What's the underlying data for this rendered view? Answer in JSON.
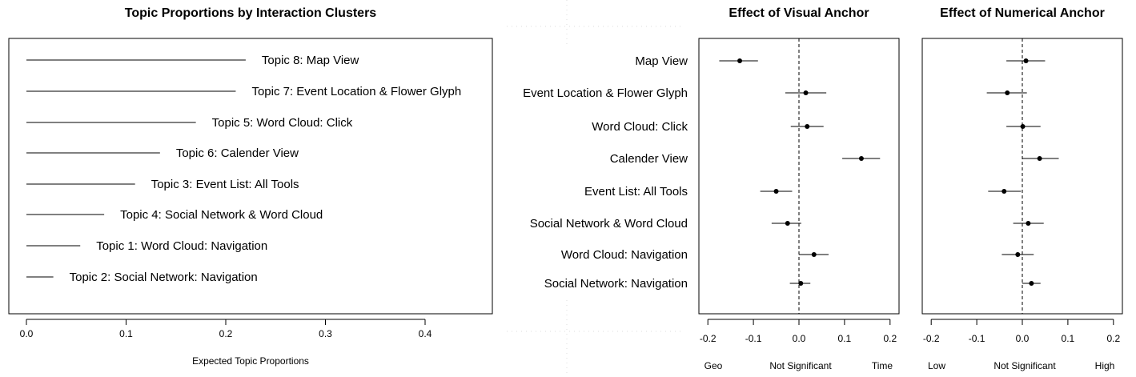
{
  "chart_data": [
    {
      "type": "bar",
      "orientation": "horizontal",
      "title": "Topic Proportions by Interaction Clusters",
      "xlabel": "Expected Topic Proportions",
      "ylabel": "",
      "xlim": [
        0,
        0.47
      ],
      "xticks": [
        "0.0",
        "0.1",
        "0.2",
        "0.3",
        "0.4"
      ],
      "xtick_values": [
        0,
        0.1,
        0.2,
        0.3,
        0.4
      ],
      "grid": false,
      "categories": [
        "Topic 8: Map View",
        "Topic 7: Event Location & Flower Glyph",
        "Topic 5: Word Cloud: Click",
        "Topic 6: Calender View",
        "Topic 3: Event List: All Tools",
        "Topic 4: Social Network & Word Cloud",
        "Topic 1: Word Cloud: Navigation",
        "Topic 2: Social Network: Navigation"
      ],
      "values": [
        0.22,
        0.21,
        0.17,
        0.134,
        0.109,
        0.078,
        0.054,
        0.027
      ]
    },
    {
      "type": "scatter",
      "subtype": "coefficient-plot",
      "title": "Effect of Visual Anchor",
      "xlim": [
        -0.22,
        0.22
      ],
      "xticks": [
        "-0.2",
        "-0.1",
        "0.0",
        "0.1",
        "0.2"
      ],
      "xtick_values": [
        -0.2,
        -0.1,
        0,
        0.1,
        0.2
      ],
      "xlabels_bottom": [
        "Geo",
        "Not Significant",
        "Time"
      ],
      "reference_line": 0,
      "grid": false,
      "categories": [
        "Map View",
        "Event Location & Flower Glyph",
        "Word Cloud: Click",
        "Calender View",
        "Event List: All Tools",
        "Social Network & Word Cloud",
        "Word Cloud: Navigation",
        "Social Network: Navigation"
      ],
      "estimates": [
        -0.13,
        0.015,
        0.018,
        0.137,
        -0.05,
        -0.025,
        0.033,
        0.004
      ],
      "ci_low": [
        -0.175,
        -0.03,
        -0.018,
        0.095,
        -0.085,
        -0.06,
        0.0,
        -0.02
      ],
      "ci_high": [
        -0.09,
        0.06,
        0.054,
        0.178,
        -0.015,
        0.005,
        0.065,
        0.025
      ]
    },
    {
      "type": "scatter",
      "subtype": "coefficient-plot",
      "title": "Effect of Numerical Anchor",
      "xlim": [
        -0.22,
        0.22
      ],
      "xticks": [
        "-0.2",
        "-0.1",
        "0.0",
        "0.1",
        "0.2"
      ],
      "xtick_values": [
        -0.2,
        -0.1,
        0,
        0.1,
        0.2
      ],
      "xlabels_bottom": [
        "Low",
        "Not Significant",
        "High"
      ],
      "reference_line": 0,
      "grid": false,
      "categories": [
        "Map View",
        "Event Location & Flower Glyph",
        "Word Cloud: Click",
        "Calender View",
        "Event List: All Tools",
        "Social Network & Word Cloud",
        "Word Cloud: Navigation",
        "Social Network: Navigation"
      ],
      "estimates": [
        0.008,
        -0.033,
        0.001,
        0.038,
        -0.04,
        0.013,
        -0.01,
        0.02
      ],
      "ci_low": [
        -0.035,
        -0.078,
        -0.035,
        0.0,
        -0.075,
        -0.02,
        -0.045,
        0.0
      ],
      "ci_high": [
        0.05,
        0.01,
        0.04,
        0.08,
        -0.003,
        0.047,
        0.025,
        0.04
      ]
    }
  ]
}
